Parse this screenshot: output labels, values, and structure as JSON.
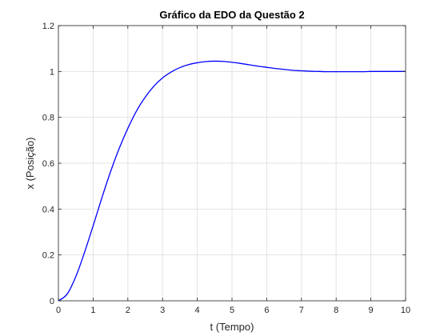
{
  "chart_data": {
    "type": "line",
    "title": "Gráfico da EDO da Questão 2",
    "xlabel": "t (Tempo)",
    "ylabel": "x (Posição)",
    "xlim": [
      0,
      10
    ],
    "ylim": [
      0,
      1.2
    ],
    "xticks": [
      "0",
      "1",
      "2",
      "3",
      "4",
      "5",
      "6",
      "7",
      "8",
      "9",
      "10"
    ],
    "yticks": [
      "0",
      "0.2",
      "0.4",
      "0.6",
      "0.8",
      "1",
      "1.2"
    ],
    "grid": true,
    "legend": "none",
    "series": [
      {
        "color": "#0000ff",
        "x": [
          0,
          0.25,
          0.5,
          0.75,
          1,
          1.25,
          1.5,
          1.75,
          2,
          2.25,
          2.5,
          2.75,
          3,
          3.25,
          3.5,
          3.75,
          4,
          4.25,
          4.5,
          4.75,
          5,
          5.25,
          5.5,
          5.75,
          6,
          6.25,
          6.5,
          6.75,
          7,
          7.25,
          7.5,
          7.75,
          8,
          8.25,
          8.5,
          8.75,
          9,
          9.25,
          9.5,
          9.75,
          10
        ],
        "y": [
          0,
          0.029,
          0.105,
          0.21,
          0.327,
          0.448,
          0.562,
          0.664,
          0.752,
          0.828,
          0.888,
          0.936,
          0.972,
          0.998,
          1.017,
          1.03,
          1.038,
          1.043,
          1.045,
          1.044,
          1.04,
          1.035,
          1.029,
          1.023,
          1.018,
          1.013,
          1.009,
          1.005,
          1.003,
          1.001,
          1.0,
          0.999,
          0.999,
          0.999,
          0.999,
          0.999,
          1.0,
          1.0,
          1.0,
          1.0,
          1.0
        ]
      }
    ]
  }
}
